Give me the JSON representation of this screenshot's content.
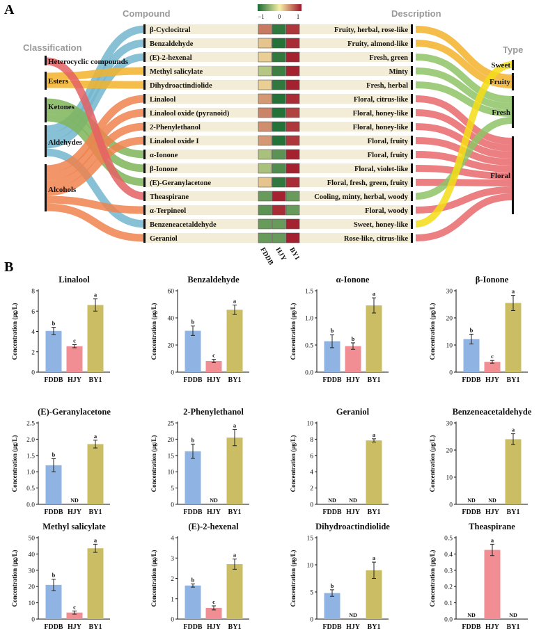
{
  "panels": {
    "a": "A",
    "b": "B"
  },
  "headers": {
    "classification": "Classification",
    "compound": "Compound",
    "description": "Description",
    "type": "Type"
  },
  "samples": [
    "FDDB",
    "HJY",
    "BY1"
  ],
  "legend": {
    "min": "−1",
    "mid": "0",
    "max": "1"
  },
  "classes": [
    "Heterocyclic compounds",
    "Esters",
    "Ketones",
    "Aldehydes",
    "Alcohols"
  ],
  "compounds": [
    "β-Cyclocitral",
    "Benzaldehyde",
    "(E)-2-hexenal",
    "Methyl salicylate",
    "Dihydroactindiolide",
    "Linalool",
    "Linalool oxide (pyranoid)",
    "2-Phenylethanol",
    "Linalool oxide I",
    "α-Ionone",
    "β-Ionone",
    "(E)-Geranylacetone",
    "Theaspirane",
    "α-Terpineol",
    "Benzeneacetaldehyde",
    "Geraniol"
  ],
  "descriptions": [
    "Fruity, herbal, rose-like",
    "Fruity, almond-like",
    "Fresh, green",
    "Minty",
    "Fresh, herbal",
    "Floral, citrus-like",
    "Floral, honey-like",
    "Floral, honey-like",
    "Floral, fruity",
    "Floral, fruity",
    "Floral, violet-like",
    "Floral, fresh, green, fruity",
    "Cooling, minty, herbal, woody",
    "Floral, woody",
    "Sweet, honey-like",
    "Rose-like, citrus-like"
  ],
  "types": [
    "Sweet",
    "Fruity",
    "Fresh",
    "Floral"
  ],
  "heatmap_values": [
    [
      0.55,
      -0.9,
      0.85
    ],
    [
      0.2,
      -0.95,
      0.9
    ],
    [
      0.15,
      -0.9,
      0.95
    ],
    [
      -0.3,
      -0.85,
      0.95
    ],
    [
      0.15,
      -0.9,
      0.95
    ],
    [
      0.4,
      -0.95,
      0.9
    ],
    [
      0.5,
      -0.95,
      0.8
    ],
    [
      0.45,
      -0.95,
      0.85
    ],
    [
      0.4,
      -0.95,
      0.85
    ],
    [
      -0.35,
      -0.7,
      0.95
    ],
    [
      -0.35,
      -0.75,
      0.95
    ],
    [
      0.2,
      -0.9,
      0.9
    ],
    [
      -0.65,
      0.95,
      -0.65
    ],
    [
      -0.7,
      0.9,
      -0.65
    ],
    [
      -0.65,
      -0.65,
      0.95
    ],
    [
      -0.65,
      -0.65,
      0.95
    ]
  ],
  "colors": {
    "fddb": "#8fb4e3",
    "hjy": "#f08e93",
    "by1": "#cbbd63",
    "bg_row": "#f3ecd6",
    "heat_neg": "#1a6b32",
    "heat_mid": "#f6f0a6",
    "heat_pos": "#a01729",
    "class_hetero": "#e46264",
    "class_esters": "#f3b32c",
    "class_ketones": "#7fb55a",
    "class_aldehydes": "#73b6cf",
    "class_alcohols": "#f0824e",
    "type_sweet": "#f4dc16",
    "type_fruity": "#f3b32c",
    "type_fresh": "#8fc466",
    "type_floral": "#e8686c"
  },
  "chart_data": [
    {
      "type": "bar",
      "title": "Linalool",
      "categories": [
        "FDDB",
        "HJY",
        "BY1"
      ],
      "values": [
        4.05,
        2.55,
        6.6
      ],
      "errors": [
        0.35,
        0.15,
        0.6
      ],
      "sig": [
        "b",
        "c",
        "a"
      ],
      "ylabel": "Concentration (μg/L)",
      "ylim": [
        0,
        8
      ],
      "yticks": [
        0,
        2,
        4,
        6,
        8
      ],
      "nd": [
        false,
        false,
        false
      ]
    },
    {
      "type": "bar",
      "title": "Benzaldehyde",
      "categories": [
        "FDDB",
        "HJY",
        "BY1"
      ],
      "values": [
        30.5,
        8.2,
        46.0
      ],
      "errors": [
        3.5,
        1.2,
        3.5
      ],
      "sig": [
        "b",
        "c",
        "a"
      ],
      "ylabel": "Concentration (μg/L)",
      "ylim": [
        0,
        60
      ],
      "yticks": [
        0,
        20,
        40,
        60
      ],
      "nd": [
        false,
        false,
        false
      ]
    },
    {
      "type": "bar",
      "title": "α-Ionone",
      "categories": [
        "FDDB",
        "HJY",
        "BY1"
      ],
      "values": [
        0.57,
        0.48,
        1.23
      ],
      "errors": [
        0.12,
        0.06,
        0.14
      ],
      "sig": [
        "b",
        "b",
        "a"
      ],
      "ylabel": "Concentration (μg/L)",
      "ylim": [
        0,
        1.5
      ],
      "yticks": [
        0.0,
        0.5,
        1.0,
        1.5
      ],
      "nd": [
        false,
        false,
        false
      ]
    },
    {
      "type": "bar",
      "title": "β-Ionone",
      "categories": [
        "FDDB",
        "HJY",
        "BY1"
      ],
      "values": [
        12.2,
        3.8,
        25.5
      ],
      "errors": [
        1.8,
        0.5,
        2.8
      ],
      "sig": [
        "b",
        "c",
        "a"
      ],
      "ylabel": "Concentration (μg/L)",
      "ylim": [
        0,
        30
      ],
      "yticks": [
        0,
        10,
        20,
        30
      ],
      "nd": [
        false,
        false,
        false
      ]
    },
    {
      "type": "bar",
      "title": "(E)-Geranylacetone",
      "categories": [
        "FDDB",
        "HJY",
        "BY1"
      ],
      "values": [
        1.2,
        0,
        1.85
      ],
      "errors": [
        0.2,
        0,
        0.12
      ],
      "sig": [
        "b",
        "ND",
        "a"
      ],
      "ylabel": "Concentration (μg/L)",
      "ylim": [
        0,
        2.5
      ],
      "yticks": [
        0.0,
        0.5,
        1.0,
        1.5,
        2.0,
        2.5
      ],
      "nd": [
        false,
        true,
        false
      ]
    },
    {
      "type": "bar",
      "title": "2-Phenylethanol",
      "categories": [
        "FDDB",
        "HJY",
        "BY1"
      ],
      "values": [
        16.3,
        0,
        20.5
      ],
      "errors": [
        2.2,
        0,
        2.5
      ],
      "sig": [
        "b",
        "ND",
        "a"
      ],
      "ylabel": "Concentration (μg/L)",
      "ylim": [
        0,
        25
      ],
      "yticks": [
        0,
        5,
        10,
        15,
        20,
        25
      ],
      "nd": [
        false,
        true,
        false
      ]
    },
    {
      "type": "bar",
      "title": "Geraniol",
      "categories": [
        "FDDB",
        "HJY",
        "BY1"
      ],
      "values": [
        0,
        0,
        7.85
      ],
      "errors": [
        0,
        0,
        0.2
      ],
      "sig": [
        "ND",
        "ND",
        "a"
      ],
      "ylabel": "Concentration (μg/L)",
      "ylim": [
        0,
        10
      ],
      "yticks": [
        0,
        2,
        4,
        6,
        8,
        10
      ],
      "nd": [
        true,
        true,
        false
      ]
    },
    {
      "type": "bar",
      "title": "Benzeneacetaldehyde",
      "categories": [
        "FDDB",
        "HJY",
        "BY1"
      ],
      "values": [
        0,
        0,
        24.0
      ],
      "errors": [
        0,
        0,
        2.0
      ],
      "sig": [
        "ND",
        "ND",
        "a"
      ],
      "ylabel": "Concentration (μg/L)",
      "ylim": [
        0,
        30
      ],
      "yticks": [
        0,
        10,
        20,
        30
      ],
      "nd": [
        true,
        true,
        false
      ]
    },
    {
      "type": "bar",
      "title": "Methyl salicylate",
      "categories": [
        "FDDB",
        "HJY",
        "BY1"
      ],
      "values": [
        21.0,
        4.0,
        43.5
      ],
      "errors": [
        3.5,
        1.0,
        2.5
      ],
      "sig": [
        "b",
        "c",
        "a"
      ],
      "ylabel": "Concentration (μg/L)",
      "ylim": [
        0,
        50
      ],
      "yticks": [
        0,
        10,
        20,
        30,
        40,
        50
      ],
      "nd": [
        false,
        false,
        false
      ]
    },
    {
      "type": "bar",
      "title": "(E)-2-hexenal",
      "categories": [
        "FDDB",
        "HJY",
        "BY1"
      ],
      "values": [
        1.65,
        0.55,
        2.7
      ],
      "errors": [
        0.08,
        0.1,
        0.25
      ],
      "sig": [
        "b",
        "c",
        "a"
      ],
      "ylabel": "Concentration (μg/L)",
      "ylim": [
        0,
        4
      ],
      "yticks": [
        0,
        1,
        2,
        3,
        4
      ],
      "nd": [
        false,
        false,
        false
      ]
    },
    {
      "type": "bar",
      "title": "Dihydroactindiolide",
      "categories": [
        "FDDB",
        "HJY",
        "BY1"
      ],
      "values": [
        4.8,
        0,
        9.0
      ],
      "errors": [
        0.6,
        0,
        1.5
      ],
      "sig": [
        "b",
        "ND",
        "a"
      ],
      "ylabel": "Concentration (μg/L)",
      "ylim": [
        0,
        15
      ],
      "yticks": [
        0,
        5,
        10,
        15
      ],
      "nd": [
        false,
        true,
        false
      ]
    },
    {
      "type": "bar",
      "title": "Theaspirane",
      "categories": [
        "FDDB",
        "HJY",
        "BY1"
      ],
      "values": [
        0,
        0.425,
        0
      ],
      "errors": [
        0,
        0.035,
        0
      ],
      "sig": [
        "ND",
        "a",
        "ND"
      ],
      "ylabel": "Concentration (μg/L)",
      "ylim": [
        0,
        0.5
      ],
      "yticks": [
        0.0,
        0.1,
        0.2,
        0.3,
        0.4,
        0.5
      ],
      "nd": [
        true,
        false,
        true
      ]
    }
  ]
}
